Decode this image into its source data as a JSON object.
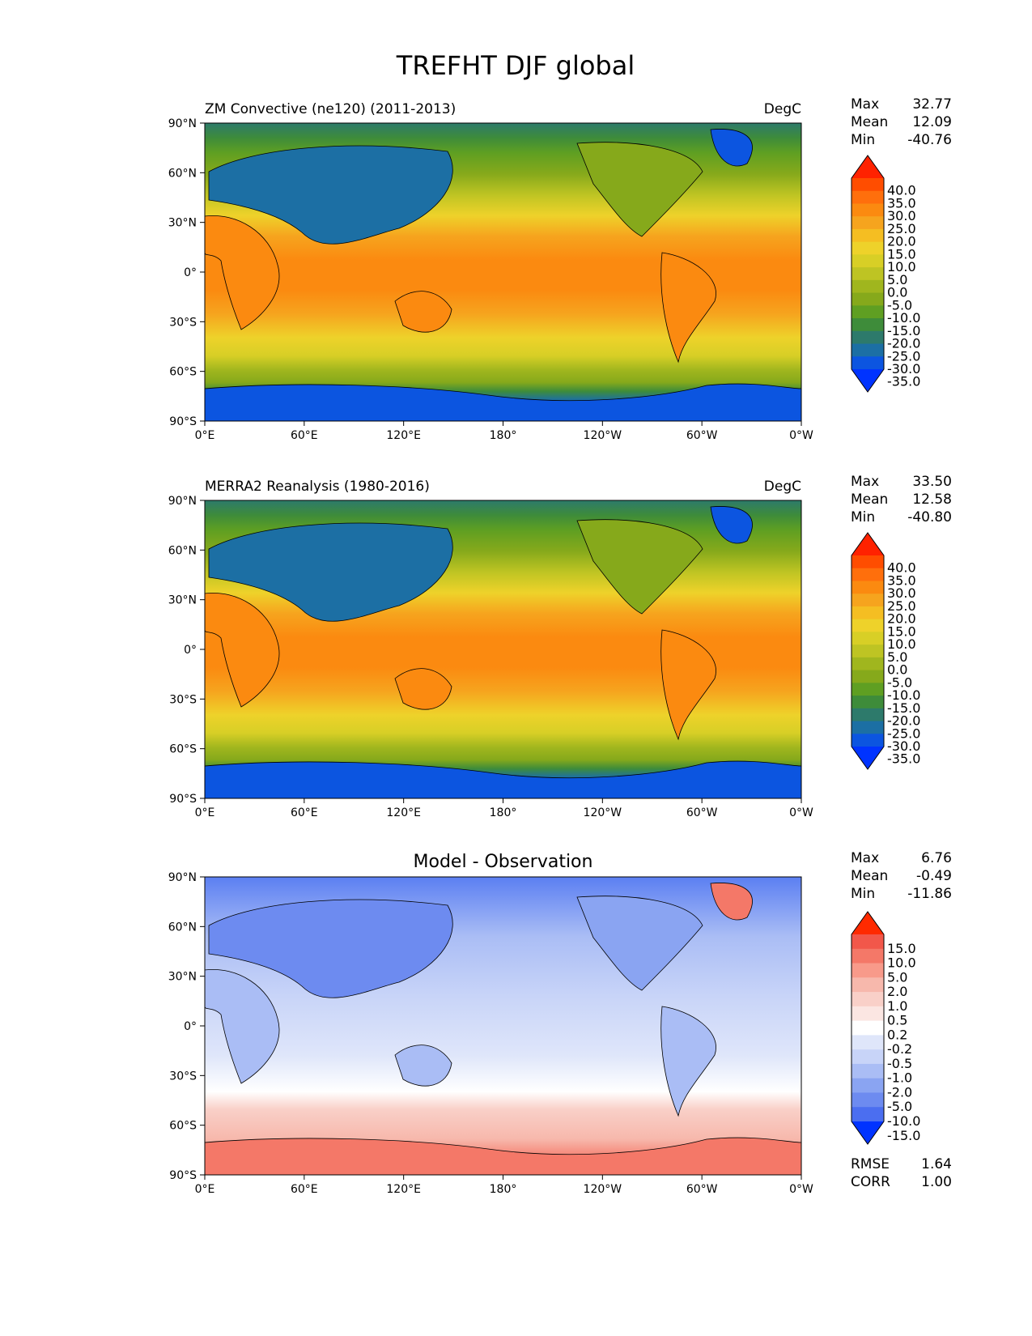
{
  "figure": {
    "title": "TREFHT DJF global"
  },
  "lon_ticks": [
    "0°E",
    "60°E",
    "120°E",
    "180°",
    "120°W",
    "60°W",
    "0°W"
  ],
  "lat_ticks": [
    "90°N",
    "60°N",
    "30°N",
    "0°",
    "30°S",
    "60°S",
    "90°S"
  ],
  "panels": [
    {
      "id": "model",
      "left_title": "ZM Convective (ne120) (2011-2013)",
      "right_title": "DegC",
      "center_title": "",
      "stats": [
        {
          "label": "Max",
          "value": "32.77"
        },
        {
          "label": "Mean",
          "value": "12.09"
        },
        {
          "label": "Min",
          "value": "-40.76"
        }
      ],
      "colorbar": {
        "labels": [
          "40.0",
          "35.0",
          "30.0",
          "25.0",
          "20.0",
          "15.0",
          "10.0",
          "5.0",
          "0.0",
          "-5.0",
          "-10.0",
          "-15.0",
          "-20.0",
          "-25.0",
          "-30.0",
          "-35.0"
        ],
        "colors": [
          "#ff2200",
          "#ff4d00",
          "#ff6f0c",
          "#fb8a10",
          "#f6a41e",
          "#f5be22",
          "#eed22a",
          "#d8cf26",
          "#bec423",
          "#a0b61e",
          "#86a91b",
          "#5f9f22",
          "#3e8c3a",
          "#2d7a6b",
          "#1c6fa4",
          "#0c55e0",
          "#0033ff"
        ]
      },
      "regional_stats": []
    },
    {
      "id": "obs",
      "left_title": "MERRA2 Reanalysis (1980-2016)",
      "right_title": "DegC",
      "center_title": "",
      "stats": [
        {
          "label": "Max",
          "value": "33.50"
        },
        {
          "label": "Mean",
          "value": "12.58"
        },
        {
          "label": "Min",
          "value": "-40.80"
        }
      ],
      "colorbar": {
        "labels": [
          "40.0",
          "35.0",
          "30.0",
          "25.0",
          "20.0",
          "15.0",
          "10.0",
          "5.0",
          "0.0",
          "-5.0",
          "-10.0",
          "-15.0",
          "-20.0",
          "-25.0",
          "-30.0",
          "-35.0"
        ],
        "colors": [
          "#ff2200",
          "#ff4d00",
          "#ff6f0c",
          "#fb8a10",
          "#f6a41e",
          "#f5be22",
          "#eed22a",
          "#d8cf26",
          "#bec423",
          "#a0b61e",
          "#86a91b",
          "#5f9f22",
          "#3e8c3a",
          "#2d7a6b",
          "#1c6fa4",
          "#0c55e0",
          "#0033ff"
        ]
      },
      "regional_stats": []
    },
    {
      "id": "diff",
      "left_title": "",
      "right_title": "",
      "center_title": "Model - Observation",
      "stats": [
        {
          "label": "Max",
          "value": "6.76"
        },
        {
          "label": "Mean",
          "value": "-0.49"
        },
        {
          "label": "Min",
          "value": "-11.86"
        }
      ],
      "colorbar": {
        "labels": [
          "15.0",
          "10.0",
          "5.0",
          "2.0",
          "1.0",
          "0.5",
          "0.2",
          "-0.2",
          "-0.5",
          "-1.0",
          "-2.0",
          "-5.0",
          "-10.0",
          "-15.0"
        ],
        "colors": [
          "#ff2a00",
          "#f2574a",
          "#f47868",
          "#f89a8a",
          "#f7b8ac",
          "#f9d0c8",
          "#fbe6e2",
          "#ffffff",
          "#dfe6fa",
          "#c8d4f8",
          "#aabdf5",
          "#8aa4f2",
          "#6d8bf0",
          "#4b6ef0",
          "#0033ff"
        ]
      },
      "regional_stats": [
        {
          "label": "RMSE",
          "value": "1.64"
        },
        {
          "label": "CORR",
          "value": "1.00"
        }
      ]
    }
  ]
}
